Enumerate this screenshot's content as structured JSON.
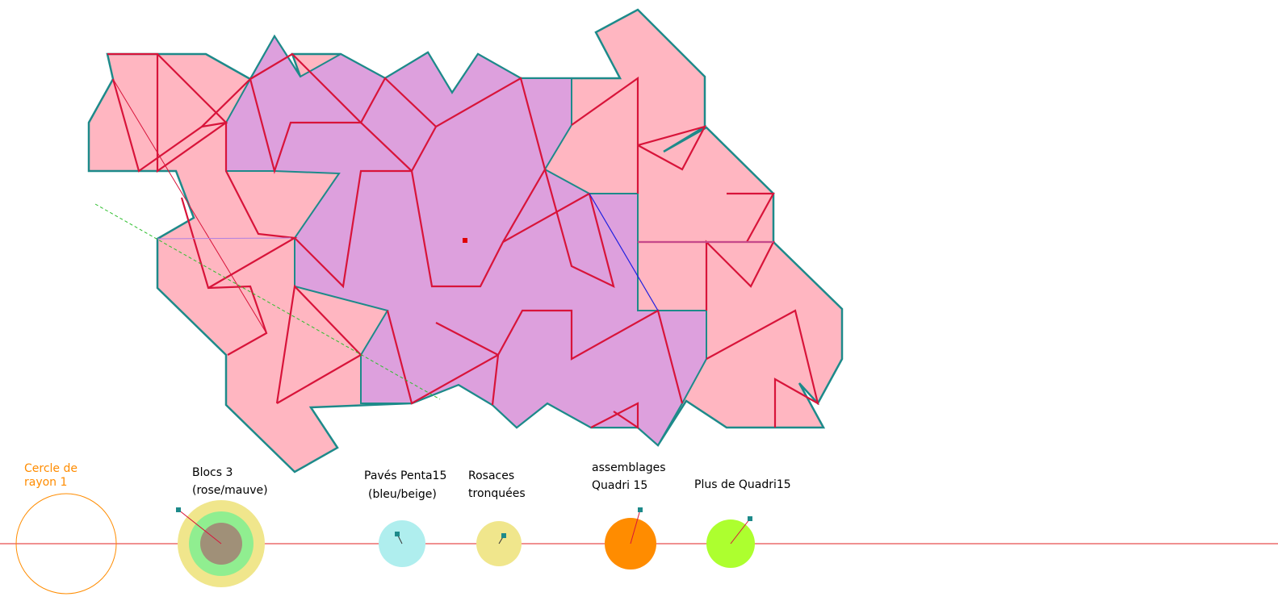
{
  "labels": [
    {
      "lines": [
        "Cercle de",
        "rayon 1"
      ]
    },
    {
      "lines": [
        "Blocs 3",
        "(rose/mauve)"
      ]
    },
    {
      "lines": [
        "Pavés Penta15",
        "(bleu/beige)"
      ]
    },
    {
      "lines": [
        "Rosaces",
        "tronquées"
      ]
    },
    {
      "lines": [
        "assemblages",
        "Quadri 15"
      ]
    },
    {
      "lines": [
        "Plus de Quadri15"
      ]
    }
  ]
}
